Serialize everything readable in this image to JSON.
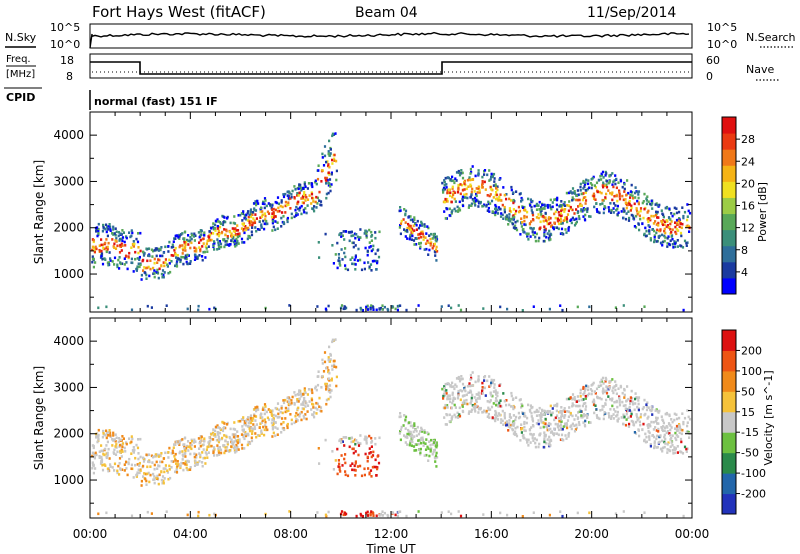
{
  "header": {
    "title": "Fort Hays West (fitACF)",
    "beam": "Beam 04",
    "date": "11/Sep/2014"
  },
  "noise_panel": {
    "left_label": "N.Sky",
    "right_label": "N.Search",
    "ticks": [
      "10^5",
      "10^0"
    ]
  },
  "freq_panel": {
    "left_label_1": "Freq.",
    "left_label_2": "[MHz]",
    "left_ticks": [
      "18",
      "8"
    ],
    "right_label": "Nave",
    "right_ticks": [
      "60",
      "0"
    ],
    "cpid_label": "CPID",
    "mode_text": "normal (fast) 151 IF"
  },
  "chart_data": [
    {
      "type": "heatmap",
      "name": "power",
      "ylabel": "Slant Range [km]",
      "yticks": [
        "4000",
        "3000",
        "2000",
        "1000"
      ],
      "ylim": [
        180,
        4500
      ],
      "xlabel": "Time UT",
      "xticks": [
        "00:00",
        "04:00",
        "08:00",
        "12:00",
        "16:00",
        "20:00",
        "00:00"
      ],
      "xlim_hours": [
        0,
        24
      ],
      "colorbar": {
        "label": "Power [dB]",
        "ticks": [
          "28",
          "24",
          "20",
          "16",
          "12",
          "8",
          "4"
        ],
        "colors": [
          "#0000ff",
          "#1a3aa0",
          "#2e6e9a",
          "#3b8f7a",
          "#58a858",
          "#9ccc46",
          "#f0e020",
          "#f5b315",
          "#f07818",
          "#ea3a12",
          "#e01010"
        ]
      }
    },
    {
      "type": "heatmap",
      "name": "velocity",
      "ylabel": "Slant Range [km]",
      "yticks": [
        "4000",
        "3000",
        "2000",
        "1000"
      ],
      "ylim": [
        180,
        4500
      ],
      "xlabel": "Time UT",
      "xticks": [
        "00:00",
        "04:00",
        "08:00",
        "12:00",
        "16:00",
        "20:00",
        "00:00"
      ],
      "xlim_hours": [
        0,
        24
      ],
      "colorbar": {
        "label": "Velocity [m s^-1]",
        "ticks": [
          "200",
          "100",
          "50",
          "15",
          "-15",
          "-50",
          "-100",
          "-200"
        ],
        "colors": [
          "#2233bb",
          "#2266aa",
          "#2a8a4a",
          "#6cc040",
          "#c8c8c8",
          "#f5c23a",
          "#f08a1a",
          "#ee5514",
          "#dd1111"
        ]
      }
    }
  ],
  "time_axis_label": "Time UT"
}
